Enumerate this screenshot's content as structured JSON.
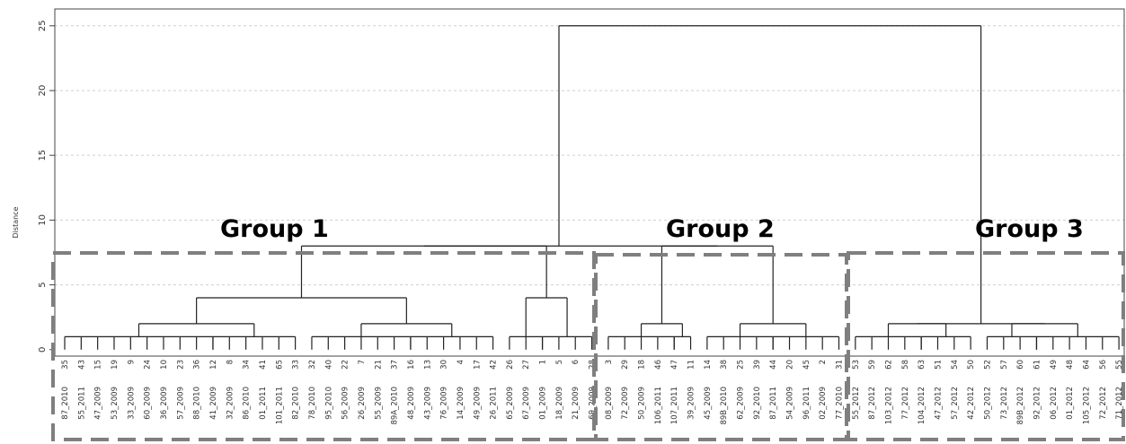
{
  "chart_data": {
    "type": "dendrogram",
    "ylabel": "Distance",
    "yticks": [
      0,
      5,
      10,
      15,
      20,
      25
    ],
    "ylim": [
      -0.5,
      26.3
    ],
    "grid": true,
    "leaves": [
      {
        "id": "35",
        "sample": "87_2010"
      },
      {
        "id": "43",
        "sample": "55_2011"
      },
      {
        "id": "15",
        "sample": "47_2009"
      },
      {
        "id": "19",
        "sample": "53_2009"
      },
      {
        "id": "9",
        "sample": "33_2009"
      },
      {
        "id": "24",
        "sample": "60_2009"
      },
      {
        "id": "10",
        "sample": "36_2009"
      },
      {
        "id": "23",
        "sample": "57_2009"
      },
      {
        "id": "36",
        "sample": "88_2010"
      },
      {
        "id": "12",
        "sample": "41_2009"
      },
      {
        "id": "8",
        "sample": "32_2009"
      },
      {
        "id": "34",
        "sample": "86_2010"
      },
      {
        "id": "41",
        "sample": "01_2011"
      },
      {
        "id": "65",
        "sample": "101_2011"
      },
      {
        "id": "33",
        "sample": "82_2010"
      },
      {
        "id": "32",
        "sample": "78_2010"
      },
      {
        "id": "40",
        "sample": "95_2010"
      },
      {
        "id": "22",
        "sample": "56_2009"
      },
      {
        "id": "7",
        "sample": "26_2009"
      },
      {
        "id": "21",
        "sample": "55_2009"
      },
      {
        "id": "37",
        "sample": "89A_2010"
      },
      {
        "id": "16",
        "sample": "48_2009"
      },
      {
        "id": "13",
        "sample": "43_2009"
      },
      {
        "id": "30",
        "sample": "76_2009"
      },
      {
        "id": "4",
        "sample": "14_2009"
      },
      {
        "id": "17",
        "sample": "49_2009"
      },
      {
        "id": "42",
        "sample": "26_2011"
      },
      {
        "id": "26",
        "sample": "65_2009"
      },
      {
        "id": "27",
        "sample": "67_2009"
      },
      {
        "id": "1",
        "sample": "01_2009"
      },
      {
        "id": "5",
        "sample": "18_2009"
      },
      {
        "id": "6",
        "sample": "21_2009"
      },
      {
        "id": "28",
        "sample": "69_2009"
      },
      {
        "id": "3",
        "sample": "08_2009"
      },
      {
        "id": "29",
        "sample": "72_2009"
      },
      {
        "id": "18",
        "sample": "50_2009"
      },
      {
        "id": "46",
        "sample": "106_2011"
      },
      {
        "id": "47",
        "sample": "107_2011"
      },
      {
        "id": "11",
        "sample": "39_2009"
      },
      {
        "id": "14",
        "sample": "45_2009"
      },
      {
        "id": "38",
        "sample": "89B_2010"
      },
      {
        "id": "25",
        "sample": "62_2009"
      },
      {
        "id": "39",
        "sample": "92_2010"
      },
      {
        "id": "44",
        "sample": "87_2011"
      },
      {
        "id": "20",
        "sample": "54_2009"
      },
      {
        "id": "45",
        "sample": "96_2011"
      },
      {
        "id": "2",
        "sample": "02_2009"
      },
      {
        "id": "31",
        "sample": "77_2010"
      },
      {
        "id": "53",
        "sample": "55_2012"
      },
      {
        "id": "59",
        "sample": "87_2012"
      },
      {
        "id": "62",
        "sample": "103_2012"
      },
      {
        "id": "58",
        "sample": "77_2012"
      },
      {
        "id": "63",
        "sample": "104_2012"
      },
      {
        "id": "51",
        "sample": "47_2012"
      },
      {
        "id": "54",
        "sample": "57_2012"
      },
      {
        "id": "50",
        "sample": "42_2012"
      },
      {
        "id": "52",
        "sample": "50_2012"
      },
      {
        "id": "57",
        "sample": "73_2012"
      },
      {
        "id": "60",
        "sample": "89B_2012"
      },
      {
        "id": "61",
        "sample": "92_2012"
      },
      {
        "id": "49",
        "sample": "06_2012"
      },
      {
        "id": "48",
        "sample": "01_2012"
      },
      {
        "id": "64",
        "sample": "105_2012"
      },
      {
        "id": "56",
        "sample": "72_2012"
      },
      {
        "id": "55",
        "sample": "71_2012"
      }
    ],
    "groups": [
      {
        "label": "Group 1"
      },
      {
        "label": "Group 2"
      },
      {
        "label": "Group 3"
      }
    ]
  }
}
